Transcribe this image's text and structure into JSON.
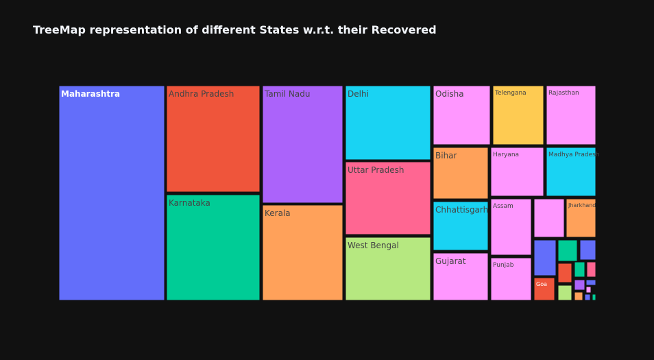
{
  "chart_data": {
    "type": "treemap",
    "title": "TreeMap representation of different States w.r.t. their Recovered",
    "items": [
      {
        "label": "Maharashtra",
        "value": 2380,
        "color": "#636efa",
        "text_color": "#ffffff"
      },
      {
        "label": "Andhra Pradesh",
        "value": 1275,
        "color": "#ef553b",
        "text_color": "#444444"
      },
      {
        "label": "Karnataka",
        "value": 1263,
        "color": "#00cc96",
        "text_color": "#444444"
      },
      {
        "label": "Tamil Nadu",
        "value": 1335,
        "color": "#ab63fa",
        "text_color": "#444444"
      },
      {
        "label": "Kerala",
        "value": 1160,
        "color": "#ffa15a",
        "text_color": "#444444"
      },
      {
        "label": "Delhi",
        "value": 840,
        "color": "#19d3f3",
        "text_color": "#444444"
      },
      {
        "label": "Uttar Pradesh",
        "value": 820,
        "color": "#ff6692",
        "text_color": "#444444"
      },
      {
        "label": "West Bengal",
        "value": 710,
        "color": "#b6e880",
        "text_color": "#444444"
      },
      {
        "label": "Odisha",
        "value": 380,
        "color": "#ff97ff",
        "text_color": "#444444"
      },
      {
        "label": "Telengana",
        "value": 370,
        "color": "#fecb52",
        "text_color": "#444444"
      },
      {
        "label": "Rajasthan",
        "value": 330,
        "color": "#ff97ff",
        "text_color": "#444444"
      },
      {
        "label": "Bihar",
        "value": 370,
        "color": "#ffa15a",
        "text_color": "#444444"
      },
      {
        "label": "Haryana",
        "value": 330,
        "color": "#ff97ff",
        "text_color": "#444444"
      },
      {
        "label": "Madhya Pradesh",
        "value": 300,
        "color": "#19d3f3",
        "text_color": "#444444"
      },
      {
        "label": "Chhattisgarh",
        "value": 350,
        "color": "#19d3f3",
        "text_color": "#444444"
      },
      {
        "label": "Gujarat",
        "value": 340,
        "color": "#ff97ff",
        "text_color": "#444444"
      },
      {
        "label": "Assam",
        "value": 280,
        "color": "#ff97ff",
        "text_color": "#444444"
      },
      {
        "label": "Punjab",
        "value": 240,
        "color": "#ff97ff",
        "text_color": "#444444"
      },
      {
        "label": "",
        "value": 140,
        "color": "#ff97ff",
        "text_color": "#444444"
      },
      {
        "label": "Jharkhand",
        "value": 120,
        "color": "#ffa15a",
        "text_color": "#444444"
      },
      {
        "label": "",
        "value": 60,
        "color": "#636efa",
        "text_color": "#444444"
      },
      {
        "label": "",
        "value": 50,
        "color": "#00cc96",
        "text_color": "#444444"
      },
      {
        "label": "",
        "value": 45,
        "color": "#636efa",
        "text_color": "#444444"
      },
      {
        "label": "Goa",
        "value": 55,
        "color": "#ef553b",
        "text_color": "#ffffff"
      },
      {
        "label": "",
        "value": 25,
        "color": "#ef553b",
        "text_color": "#444444"
      },
      {
        "label": "",
        "value": 20,
        "color": "#00cc96",
        "text_color": "#444444"
      },
      {
        "label": "",
        "value": 18,
        "color": "#ff6692",
        "text_color": "#444444"
      },
      {
        "label": "",
        "value": 15,
        "color": "#b6e880",
        "text_color": "#444444"
      },
      {
        "label": "",
        "value": 12,
        "color": "#ab63fa",
        "text_color": "#444444"
      },
      {
        "label": "",
        "value": 8,
        "color": "#636efa",
        "text_color": "#444444"
      },
      {
        "label": "",
        "value": 8,
        "color": "#ff97ff",
        "text_color": "#444444"
      },
      {
        "label": "",
        "value": 6,
        "color": "#ffa15a",
        "text_color": "#444444"
      },
      {
        "label": "",
        "value": 5,
        "color": "#636efa",
        "text_color": "#444444"
      },
      {
        "label": "",
        "value": 5,
        "color": "#00cc96",
        "text_color": "#444444"
      }
    ]
  }
}
